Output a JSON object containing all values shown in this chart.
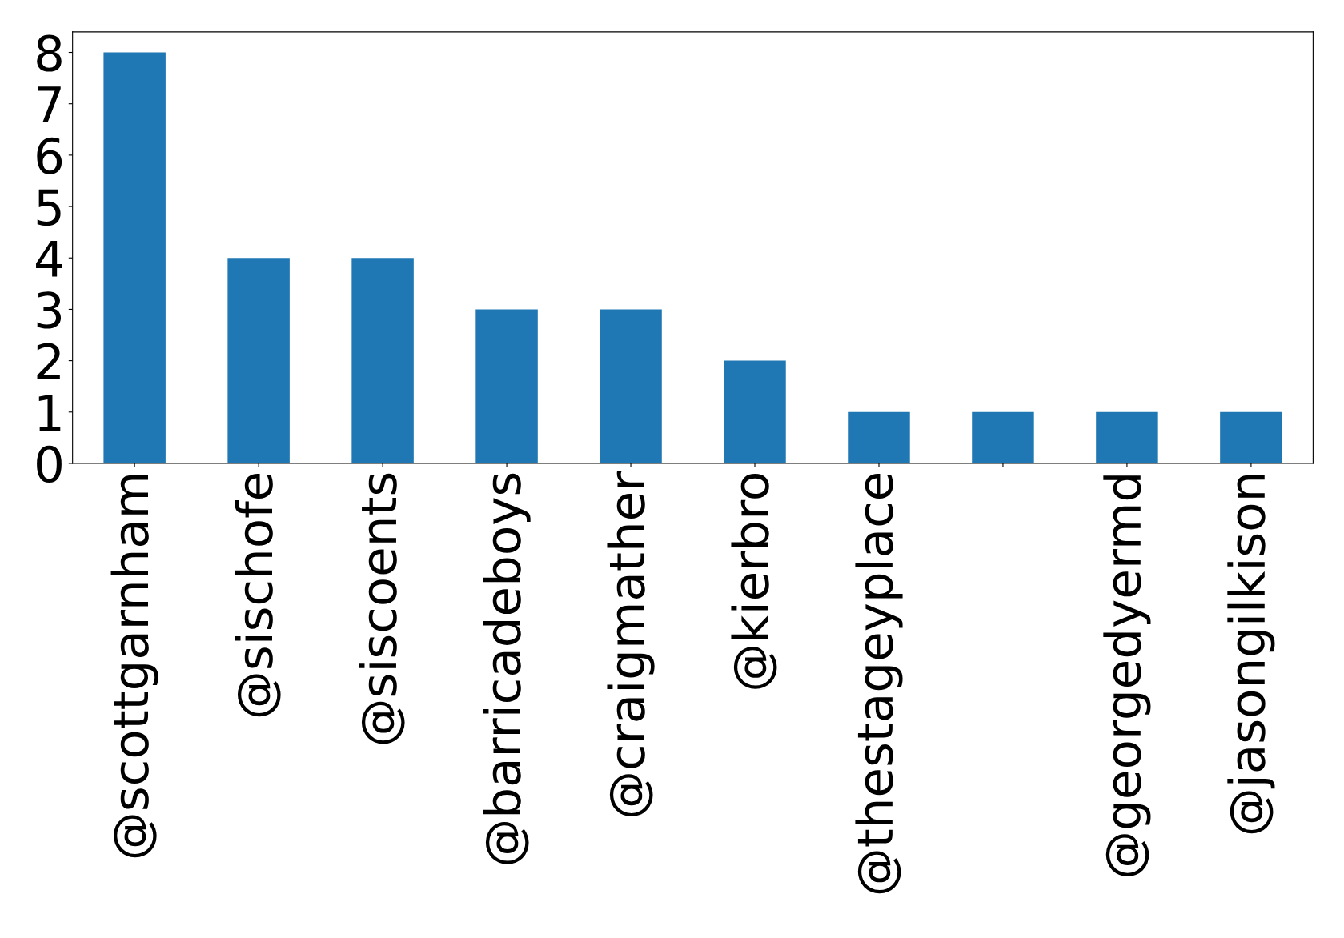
{
  "chart_data": {
    "type": "bar",
    "categories": [
      "@scottgarnham",
      "@sischofe",
      "@siscoents",
      "@barricadeboys",
      "@craigmather",
      "@kierbro",
      "@thestageyplace",
      null,
      "@georgedyermd",
      "@jasongilkison"
    ],
    "values": [
      8,
      4,
      4,
      3,
      3,
      2,
      1,
      1,
      1,
      1
    ],
    "color": "#1f77b4",
    "ylim": [
      0,
      8.4
    ],
    "yticks": [
      0,
      1,
      2,
      3,
      4,
      5,
      6,
      7,
      8
    ],
    "grid": false,
    "legend": false
  }
}
